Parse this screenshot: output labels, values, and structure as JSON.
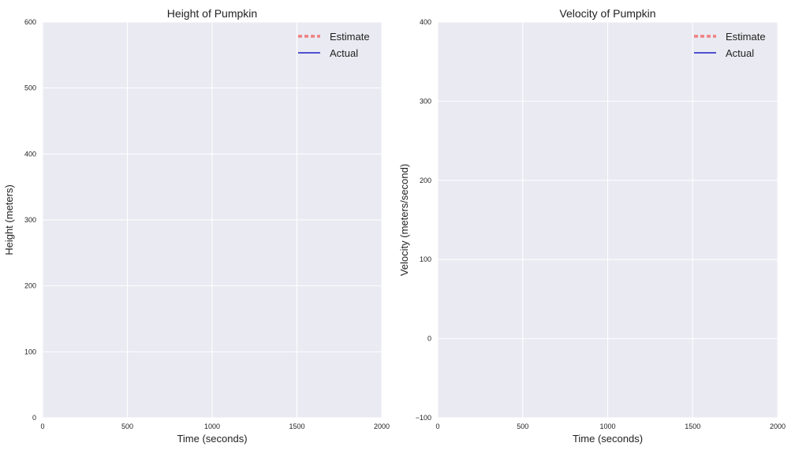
{
  "chart_data": [
    {
      "type": "line",
      "title": "Height of Pumpkin",
      "xlabel": "Time (seconds)",
      "ylabel": "Height (meters)",
      "xlim": [
        0,
        2000
      ],
      "ylim": [
        0,
        600
      ],
      "xticks": [
        0,
        500,
        1000,
        1500,
        2000
      ],
      "yticks": [
        0,
        100,
        200,
        300,
        400,
        500,
        600
      ],
      "grid": true,
      "legend_position": "top-right",
      "series": [
        {
          "name": "Estimate",
          "style": "dashed",
          "color": "#f08080",
          "x": [],
          "y": []
        },
        {
          "name": "Actual",
          "style": "solid",
          "color": "#3a3acc",
          "x": [],
          "y": []
        }
      ]
    },
    {
      "type": "line",
      "title": "Velocity of Pumpkin",
      "xlabel": "Time (seconds)",
      "ylabel": "Velocity (meters/second)",
      "xlim": [
        0,
        2000
      ],
      "ylim": [
        -100,
        400
      ],
      "xticks": [
        0,
        500,
        1000,
        1500,
        2000
      ],
      "yticks": [
        -100,
        0,
        100,
        200,
        300,
        400
      ],
      "grid": true,
      "legend_position": "top-right",
      "series": [
        {
          "name": "Estimate",
          "style": "dashed",
          "color": "#f08080",
          "x": [],
          "y": []
        },
        {
          "name": "Actual",
          "style": "solid",
          "color": "#3a3acc",
          "x": [],
          "y": []
        }
      ]
    }
  ],
  "colors": {
    "plot_background": "#eaeaf2",
    "grid": "#ffffff"
  }
}
